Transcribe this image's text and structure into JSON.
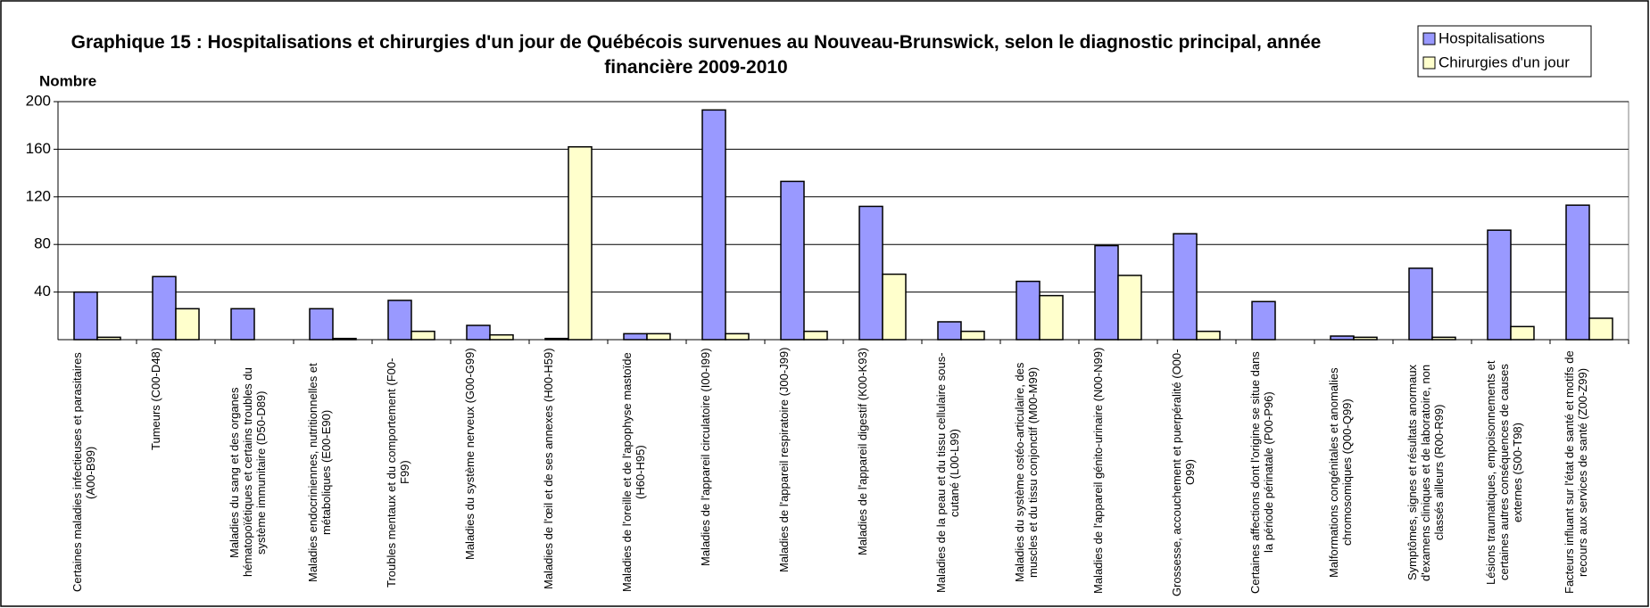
{
  "chart_data": {
    "type": "bar",
    "title": "Graphique 15 : Hospitalisations et chirurgies d'un jour de Québécois survenues au Nouveau-Brunswick, selon le diagnostic principal, année financière 2009-2010",
    "ylabel": "Nombre",
    "categories": [
      "Certaines maladies infectieuses et parasitaires (A00-B99)",
      "Tumeurs (C00-D48)",
      "Maladies du sang et des organes hématopoïétiques et certains troubles du système immunitaire (D50-D89)",
      "Maladies endocriniennes, nutritionnelles et métaboliques (E00-E90)",
      "Troubles mentaux et du comportement (F00-F99)",
      "Maladies du système nerveux (G00-G99)",
      "Maladies de l'œil et de ses annexes (H00-H59)",
      "Maladies de l'oreille et de l'apophyse mastoïde (H60-H95)",
      "Maladies de l'appareil circulatoire (I00-I99)",
      "Maladies de l'appareil respiratoire (J00-J99)",
      "Maladies de l'appareil digestif (K00-K93)",
      "Maladies de la peau et du tissu cellulaire sous-cutané (L00-L99)",
      "Maladies du système ostéo-articulaire, des muscles et du tissu conjonctif (M00-M99)",
      "Maladies de l'appareil génito-urinaire (N00-N99)",
      "Grossesse, accouchement et puerpéralité (O00-O99)",
      "Certaines affections dont l'origine se situe dans la période périnatale (P00-P96)",
      "Malformations congénitales et anomalies chromosomiques (Q00-Q99)",
      "Symptômes, signes et résultats anormaux d'examens cliniques et de laboratoire, non classés ailleurs (R00-R99)",
      "Lésions traumatiques, empoisonnements et certaines autres conséquences de causes externes (S00-T98)",
      "Facteurs influant sur l'état de santé et motifs de recours aux services de santé (Z00-Z99)"
    ],
    "series": [
      {
        "name": "Hospitalisations",
        "color": "#9999ff",
        "values": [
          40,
          53,
          26,
          26,
          33,
          12,
          1,
          5,
          193,
          133,
          112,
          15,
          49,
          79,
          89,
          32,
          3,
          60,
          92,
          113
        ]
      },
      {
        "name": "Chirurgies d'un jour",
        "color": "#ffffcc",
        "values": [
          2,
          26,
          0,
          1,
          7,
          4,
          162,
          5,
          5,
          7,
          55,
          7,
          37,
          54,
          7,
          0,
          2,
          2,
          11,
          18
        ]
      }
    ],
    "ylim": [
      0,
      200
    ],
    "yticks": [
      40,
      80,
      120,
      160,
      200
    ],
    "grid": true,
    "legend": "top-right"
  }
}
